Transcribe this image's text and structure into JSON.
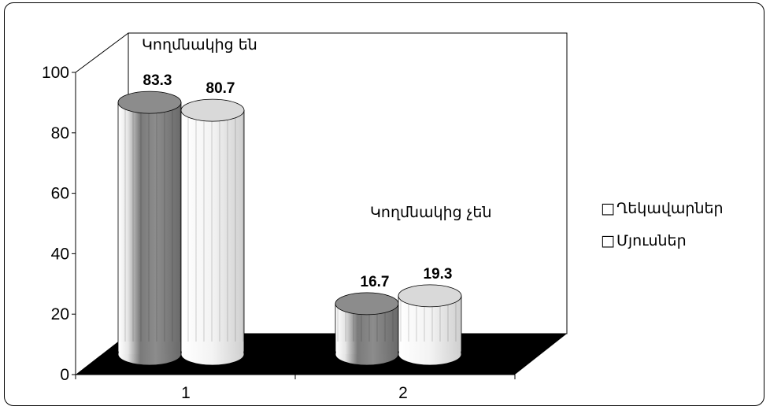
{
  "chart_data": {
    "type": "bar",
    "categories": [
      "1",
      "2"
    ],
    "series": [
      {
        "name": "Ղեկավարներ",
        "values": [
          83.3,
          16.7
        ],
        "color": "#8c8c8c"
      },
      {
        "name": "Մյուսներ",
        "values": [
          80.7,
          19.3
        ],
        "color": "#d9d9d9"
      }
    ],
    "ylim": [
      0,
      100
    ],
    "yticks": [
      "0",
      "20",
      "40",
      "60",
      "80",
      "100"
    ],
    "annotations": [
      "Կողմնակից են",
      "Կողմնակից չեն"
    ],
    "data_labels": [
      "83.3",
      "80.7",
      "16.7",
      "19.3"
    ],
    "legend_position": "right",
    "legend_marker": "□",
    "grid": false,
    "style": "3d-cylinder"
  }
}
